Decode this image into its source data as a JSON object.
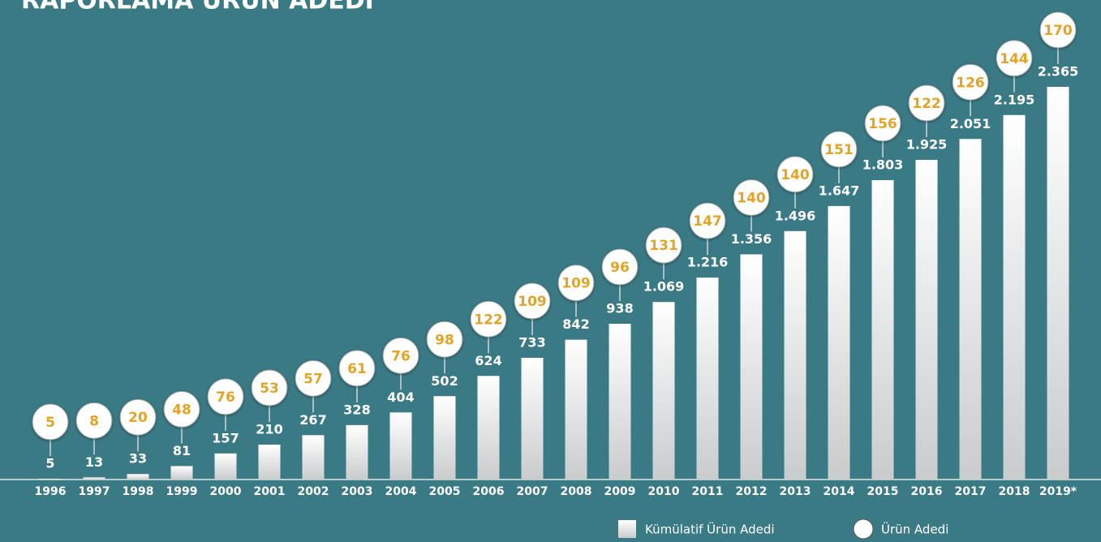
{
  "chart_data": {
    "type": "bar",
    "title": "RAPORLAMA ÜRÜN ADEDİ",
    "categories": [
      "1996",
      "1997",
      "1998",
      "1999",
      "2000",
      "2001",
      "2002",
      "2003",
      "2004",
      "2005",
      "2006",
      "2007",
      "2008",
      "2009",
      "2010",
      "2011",
      "2012",
      "2013",
      "2014",
      "2015",
      "2016",
      "2017",
      "2018",
      "2019*"
    ],
    "series": [
      {
        "name": "Kümülatif Ürün Adedi",
        "color": "#ffffff",
        "values": [
          5,
          13,
          33,
          81,
          157,
          210,
          267,
          328,
          404,
          502,
          624,
          733,
          842,
          938,
          1069,
          1216,
          1356,
          1496,
          1647,
          1803,
          1925,
          2051,
          2195,
          2365
        ],
        "value_labels": [
          "5",
          "13",
          "33",
          "81",
          "157",
          "210",
          "267",
          "328",
          "404",
          "502",
          "624",
          "733",
          "842",
          "938",
          "1.069",
          "1.216",
          "1.356",
          "1.496",
          "1.647",
          "1.803",
          "1.925",
          "2.051",
          "2.195",
          "2.365"
        ]
      },
      {
        "name": "Ürün Adedi",
        "color": "#e3a325",
        "values": [
          5,
          8,
          20,
          48,
          76,
          53,
          57,
          61,
          76,
          98,
          122,
          109,
          109,
          96,
          131,
          147,
          140,
          140,
          151,
          156,
          122,
          126,
          144,
          170
        ]
      }
    ]
  }
}
